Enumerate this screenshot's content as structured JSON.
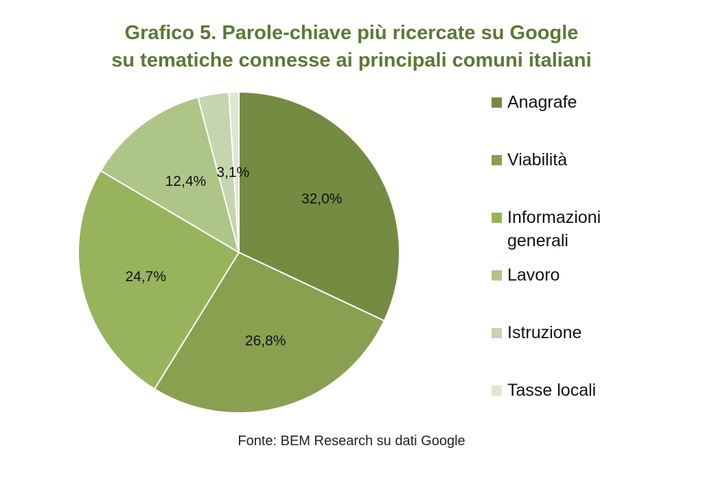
{
  "chart_data": {
    "type": "pie",
    "title_lines": [
      "Grafico 5. Parole-chiave più ricercate su Google",
      "su tematiche connesse ai principali comuni italiani"
    ],
    "slices": [
      {
        "name": "Anagrafe",
        "value": 32.0,
        "label": "32,0%",
        "color": "#748b42"
      },
      {
        "name": "Viabilità",
        "value": 26.8,
        "label": "26,8%",
        "color": "#88a04f"
      },
      {
        "name": "Informazioni generali",
        "value": 24.7,
        "label": "24,7%",
        "color": "#97b45c"
      },
      {
        "name": "Lavoro",
        "value": 12.4,
        "label": "12,4%",
        "color": "#aec588"
      },
      {
        "name": "Istruzione",
        "value": 3.1,
        "label": "3,1%",
        "color": "#c5d6ae"
      },
      {
        "name": "Tasse locali",
        "value": 1.0,
        "label": "",
        "color": "#dde7d2"
      }
    ],
    "legend": [
      "Anagrafe",
      "Viabilità",
      "Informazioni generali",
      "Lavoro",
      "Istruzione",
      "Tasse locali"
    ],
    "legend_position": "right"
  },
  "source": "Fonte: BEM Research su dati Google"
}
